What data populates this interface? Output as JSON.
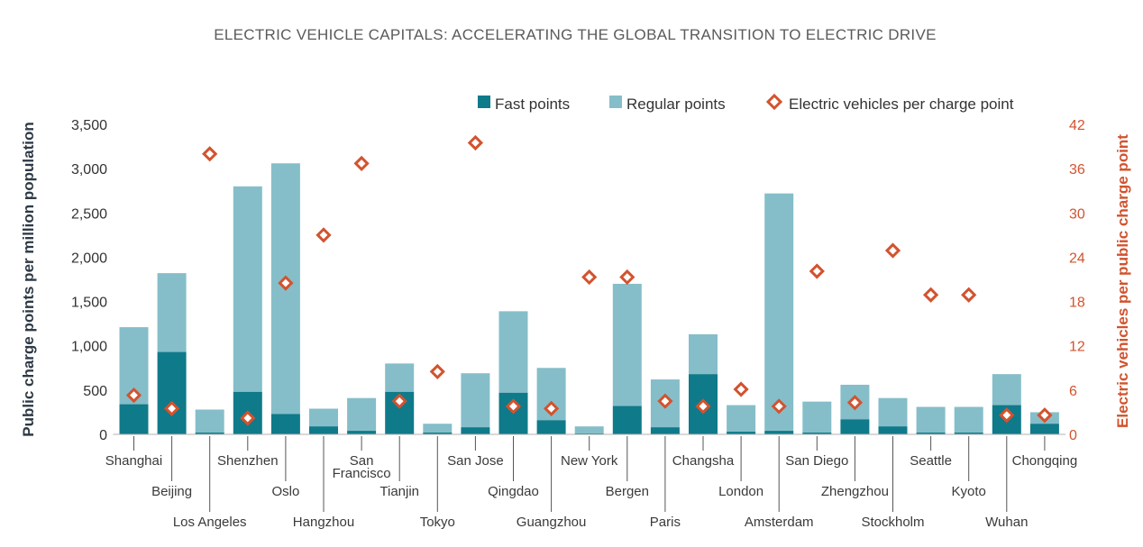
{
  "colors": {
    "fast": "#0f7a8a",
    "regular": "#85bec9",
    "ev": "#d2532e",
    "baseline": "#b0b0b0",
    "tick": "#555555"
  },
  "chart_data": {
    "type": "bar",
    "title": "ELECTRIC VEHICLE CAPITALS: ACCELERATING THE GLOBAL TRANSITION TO ELECTRIC DRIVE",
    "ylabel": "Public charge points per million population",
    "y2label": "Electric vehicles per public charge point",
    "ylim": [
      0,
      3500
    ],
    "y2lim": [
      0,
      42
    ],
    "yticks": [
      "0",
      "500",
      "1,000",
      "1,500",
      "2,000",
      "2,500",
      "3,000",
      "3,500"
    ],
    "y2ticks": [
      "0",
      "6",
      "12",
      "18",
      "24",
      "30",
      "36",
      "42"
    ],
    "stacked": true,
    "legend": {
      "position": "top-right",
      "fast": "Fast points",
      "regular": "Regular points",
      "ev": "Electric vehicles per charge point"
    },
    "categories": [
      {
        "label": "Shanghai",
        "lines": [
          "Shanghai"
        ]
      },
      {
        "label": "Beijing",
        "lines": [
          "Beijing"
        ]
      },
      {
        "label": "Los Angeles",
        "lines": [
          "Los Angeles"
        ]
      },
      {
        "label": "Shenzhen",
        "lines": [
          "Shenzhen"
        ]
      },
      {
        "label": "Oslo",
        "lines": [
          "Oslo"
        ]
      },
      {
        "label": "Hangzhou",
        "lines": [
          "Hangzhou"
        ]
      },
      {
        "label": "San Francisco",
        "lines": [
          "San",
          "Francisco"
        ]
      },
      {
        "label": "Tianjin",
        "lines": [
          "Tianjin"
        ]
      },
      {
        "label": "Tokyo",
        "lines": [
          "Tokyo"
        ]
      },
      {
        "label": "San Jose",
        "lines": [
          "San Jose"
        ]
      },
      {
        "label": "Qingdao",
        "lines": [
          "Qingdao"
        ]
      },
      {
        "label": "Guangzhou",
        "lines": [
          "Guangzhou"
        ]
      },
      {
        "label": "New York",
        "lines": [
          "New York"
        ]
      },
      {
        "label": "Bergen",
        "lines": [
          "Bergen"
        ]
      },
      {
        "label": "Paris",
        "lines": [
          "Paris"
        ]
      },
      {
        "label": "Changsha",
        "lines": [
          "Changsha"
        ]
      },
      {
        "label": "London",
        "lines": [
          "London"
        ]
      },
      {
        "label": "Amsterdam",
        "lines": [
          "Amsterdam"
        ]
      },
      {
        "label": "San Diego",
        "lines": [
          "San Diego"
        ]
      },
      {
        "label": "Zhengzhou",
        "lines": [
          "Zhengzhou"
        ]
      },
      {
        "label": "Stockholm",
        "lines": [
          "Stockholm"
        ]
      },
      {
        "label": "Seattle",
        "lines": [
          "Seattle"
        ]
      },
      {
        "label": "Kyoto",
        "lines": [
          "Kyoto"
        ]
      },
      {
        "label": "Wuhan",
        "lines": [
          "Wuhan"
        ]
      },
      {
        "label": "Chongqing",
        "lines": [
          "Chongqing"
        ]
      }
    ],
    "series": [
      {
        "name": "Fast points",
        "axis": "left",
        "values": [
          340,
          930,
          20,
          480,
          230,
          90,
          40,
          480,
          20,
          80,
          470,
          160,
          10,
          320,
          80,
          680,
          30,
          40,
          20,
          170,
          90,
          20,
          20,
          330,
          120
        ]
      },
      {
        "name": "Regular points",
        "axis": "left",
        "values": [
          870,
          890,
          260,
          2320,
          2830,
          200,
          370,
          320,
          100,
          610,
          920,
          590,
          80,
          1380,
          540,
          450,
          300,
          2680,
          350,
          390,
          320,
          290,
          290,
          350,
          130
        ]
      },
      {
        "name": "Electric vehicles per charge point",
        "axis": "right",
        "marker": "diamond",
        "values": [
          5.3,
          3.5,
          38.0,
          2.2,
          20.5,
          27.0,
          36.7,
          4.5,
          8.5,
          39.5,
          3.8,
          3.5,
          21.3,
          21.3,
          4.5,
          3.8,
          6.1,
          3.8,
          22.1,
          4.3,
          24.9,
          18.9,
          18.9,
          2.6,
          2.6
        ]
      }
    ]
  }
}
